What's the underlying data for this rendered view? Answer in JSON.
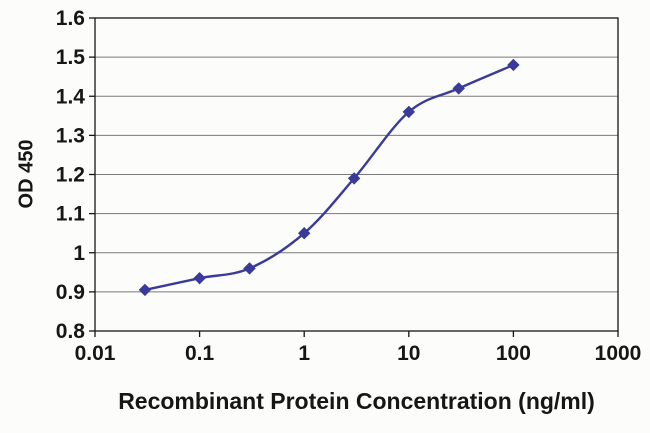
{
  "chart_data": {
    "type": "line",
    "xlabel": "Recombinant Protein Concentration (ng/ml)",
    "ylabel": "OD 450",
    "x_scale": "log10",
    "xlim": [
      0.01,
      1000
    ],
    "ylim": [
      0.8,
      1.6
    ],
    "x_tick_values": [
      0.01,
      0.1,
      1,
      10,
      100,
      1000
    ],
    "x_tick_labels": [
      "0.01",
      "0.1",
      "1",
      "10",
      "100",
      "1000"
    ],
    "y_tick_values": [
      0.8,
      0.9,
      1.0,
      1.1,
      1.2,
      1.3,
      1.4,
      1.5,
      1.6
    ],
    "y_tick_labels": [
      "0.8",
      "0.9",
      "1",
      "1.1",
      "1.2",
      "1.3",
      "1.4",
      "1.5",
      "1.6"
    ],
    "grid": "horizontal",
    "legend": false,
    "series": [
      {
        "name": "OD 450",
        "color": "#3a3a9a",
        "marker": "diamond",
        "line_style": "smooth",
        "x": [
          0.03,
          0.1,
          0.3,
          1,
          3,
          10,
          30,
          100
        ],
        "y": [
          0.905,
          0.935,
          0.96,
          1.05,
          1.19,
          1.36,
          1.42,
          1.48
        ]
      }
    ],
    "colors": {
      "grid": "#7a7a7a",
      "axis": "#161616",
      "text": "#161616",
      "background": "#fcfcfa"
    }
  }
}
